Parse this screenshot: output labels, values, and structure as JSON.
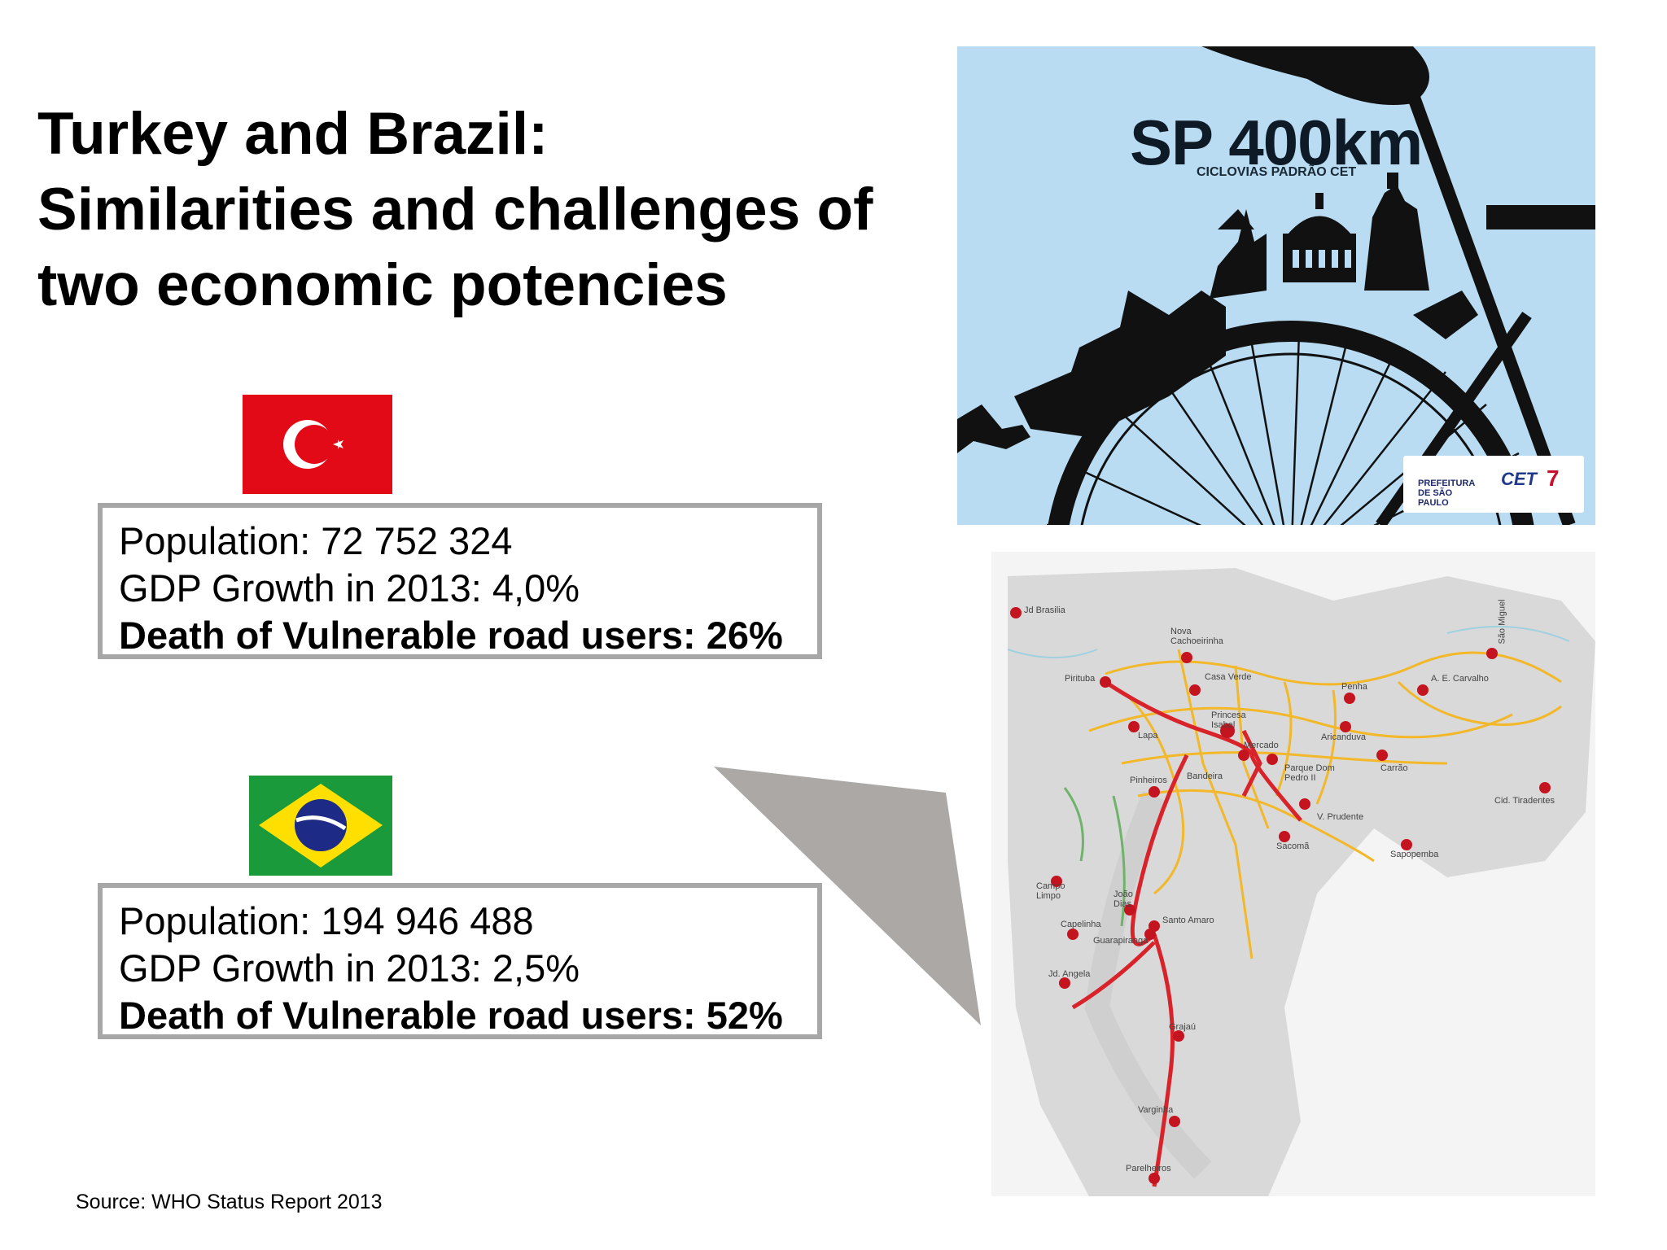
{
  "slide": {
    "title_lines": [
      "Turkey and Brazil:",
      "Similarities and challenges of",
      "two economic potencies"
    ],
    "source": "Source: WHO Status Report 2013"
  },
  "turkey": {
    "population": "Population: 72 752 324",
    "gdp": "GDP Growth in 2013: 4,0%",
    "deaths": "Death of Vulnerable road users: 26%",
    "flag_colors": {
      "field": "#e30a17",
      "emblem": "#ffffff"
    }
  },
  "brazil": {
    "population": "Population: 194 946 488",
    "gdp": "GDP Growth in 2013: 2,5%",
    "deaths": "Death of Vulnerable road users: 52%",
    "flag_colors": {
      "field": "#1a9a3a",
      "diamond": "#fedf00",
      "globe": "#1d2b86"
    }
  },
  "poster": {
    "title": "SP 400km",
    "subtitle": "CICLOVIAS PADRÃO CET",
    "logos": {
      "prefeitura": "PREFEITURA DE SÃO PAULO",
      "cet": "CET",
      "seven": "7"
    }
  },
  "map": {
    "labels": [
      "Jd Brasilia",
      "Nova Cachoeirinha",
      "Pirituba",
      "Casa Verde",
      "Penha",
      "A. E. Carvalho",
      "São Miguel",
      "Lapa",
      "Princesa Isabel",
      "Mercado",
      "Aricanduva",
      "Parque Dom Pedro II",
      "Carrão",
      "Cid. Tiradentes",
      "Pinheiros",
      "Bandeira",
      "V. Prudente",
      "Sacomã",
      "Sapopemba",
      "Campo Limpo",
      "João Dias",
      "Santo Amaro",
      "Capelinha",
      "Guarapiranga",
      "Jd. Angela",
      "Grajaú",
      "Varginha",
      "Parelheiros"
    ]
  }
}
